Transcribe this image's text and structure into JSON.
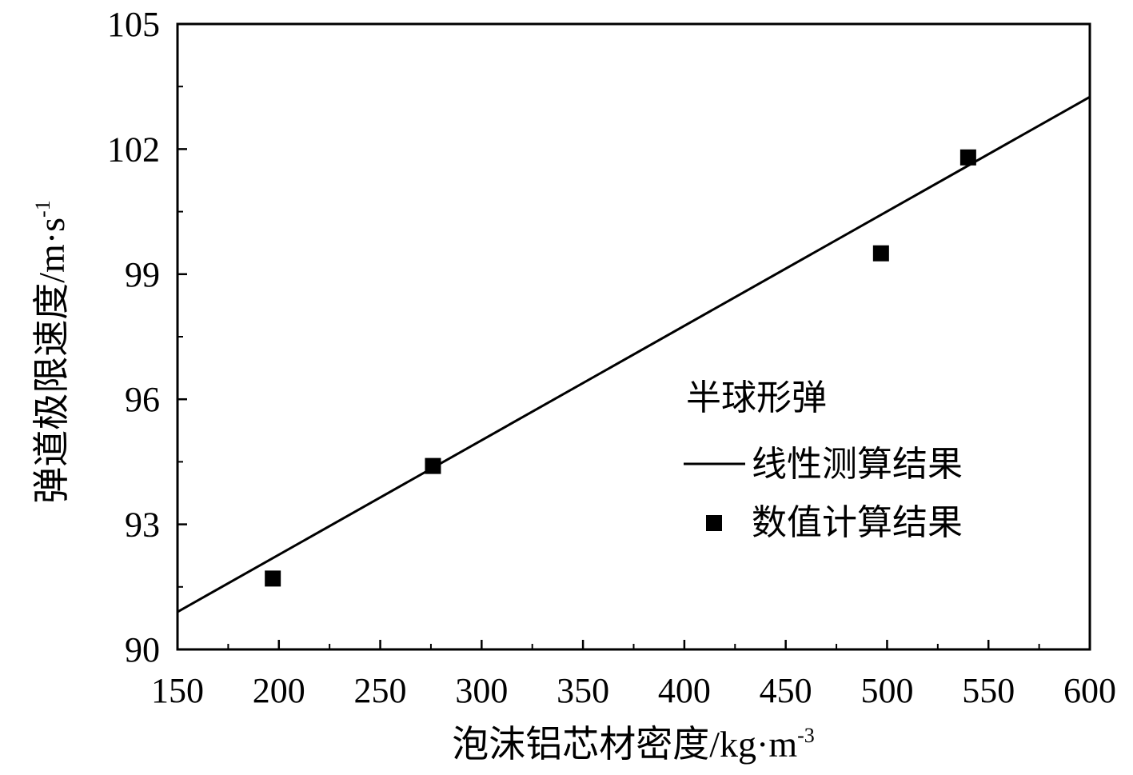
{
  "chart_data": {
    "type": "scatter",
    "xlabel": "泡沫铝芯材密度/kg·m",
    "xlabel_sup": "-3",
    "ylabel": "弹道极限速度/m·s",
    "ylabel_sup": "-1",
    "xlim": [
      150,
      600
    ],
    "ylim": [
      90,
      105
    ],
    "x_ticks": [
      150,
      200,
      250,
      300,
      350,
      400,
      450,
      500,
      550,
      600
    ],
    "x_tick_labels": [
      "150",
      "200",
      "250",
      "300",
      "350",
      "400",
      "450",
      "500",
      "550",
      "600"
    ],
    "y_ticks": [
      90,
      93,
      96,
      99,
      102,
      105
    ],
    "y_tick_labels": [
      "90",
      "93",
      "96",
      "99",
      "102",
      "105"
    ],
    "legend_title": "半球形弹",
    "legend_position": "center-right",
    "series": [
      {
        "name": "线性测算结果",
        "kind": "line",
        "x": [
          150,
          600
        ],
        "y": [
          90.9,
          103.25
        ]
      },
      {
        "name": "数值计算结果",
        "kind": "scatter",
        "marker": "square",
        "x": [
          197,
          276,
          497,
          540
        ],
        "y": [
          91.7,
          94.4,
          99.5,
          101.8
        ]
      }
    ]
  }
}
